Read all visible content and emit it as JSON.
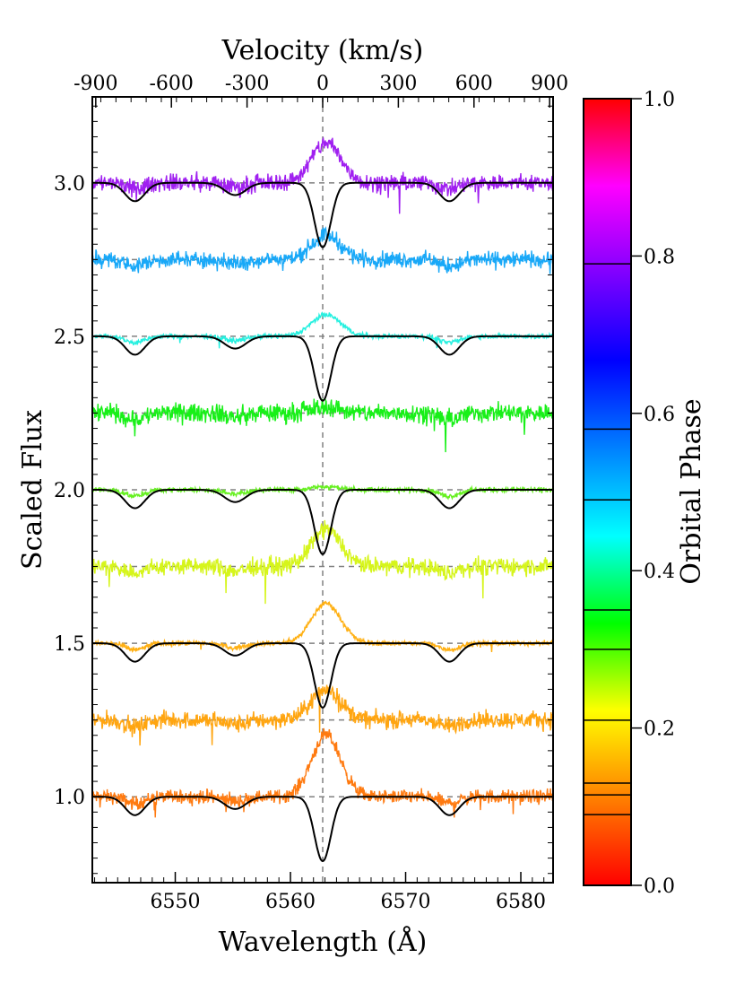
{
  "chart_data": {
    "type": "line",
    "top_axis": {
      "label": "Velocity (km/s)",
      "ticks": [
        -900,
        -600,
        -300,
        0,
        300,
        600,
        900
      ],
      "tick_labels": [
        "-900",
        "-600",
        "-300",
        "0",
        "300",
        "600",
        "900"
      ]
    },
    "xlabel": "Wavelength (Å)",
    "ylabel": "Scaled Flux",
    "xlim": [
      6542.8,
      6582.8
    ],
    "ylim": [
      0.72,
      3.28
    ],
    "x_ticks": [
      6550,
      6560,
      6570,
      6580
    ],
    "x_tick_labels": [
      "6550",
      "6560",
      "6570",
      "6580"
    ],
    "y_ticks": [
      1.0,
      1.5,
      2.0,
      2.5,
      3.0
    ],
    "y_tick_labels": [
      "1.0",
      "1.5",
      "2.0",
      "2.5",
      "3.0"
    ],
    "reference_line_x": 6562.8,
    "dashed_offsets": [
      1.0,
      1.25,
      1.5,
      1.75,
      2.0,
      2.25,
      2.5,
      2.75,
      3.0
    ],
    "model_offsets": [
      1.0,
      1.5,
      2.0,
      2.5,
      3.0
    ],
    "model_features": [
      {
        "center": 6546.5,
        "depth": 0.06,
        "width": 1.2
      },
      {
        "center": 6555.2,
        "depth": 0.04,
        "width": 1.3
      },
      {
        "center": 6562.8,
        "depth": 0.21,
        "width": 1.0
      },
      {
        "center": 6573.8,
        "depth": 0.06,
        "width": 1.2
      }
    ],
    "observed_series": [
      {
        "offset": 1.0,
        "phase": 0.09,
        "color": "#ff7a10",
        "noise": 0.022,
        "emission": 0.2
      },
      {
        "offset": 1.25,
        "phase": 0.115,
        "color": "#ffa510",
        "noise": 0.028,
        "emission": 0.1
      },
      {
        "offset": 1.5,
        "phase": 0.13,
        "color": "#ffb013",
        "noise": 0.008,
        "emission": 0.13
      },
      {
        "offset": 1.75,
        "phase": 0.21,
        "color": "#d6f51b",
        "noise": 0.028,
        "emission": 0.12
      },
      {
        "offset": 2.0,
        "phase": 0.3,
        "color": "#66f020",
        "noise": 0.008,
        "emission": 0.01
      },
      {
        "offset": 2.25,
        "phase": 0.35,
        "color": "#18f018",
        "noise": 0.03,
        "emission": 0.02
      },
      {
        "offset": 2.5,
        "phase": 0.49,
        "color": "#26f0e0",
        "noise": 0.008,
        "emission": 0.07
      },
      {
        "offset": 2.75,
        "phase": 0.58,
        "color": "#18a8f8",
        "noise": 0.026,
        "emission": 0.08
      },
      {
        "offset": 3.0,
        "phase": 0.79,
        "color": "#a020f0",
        "noise": 0.028,
        "emission": 0.13
      }
    ],
    "colorbar": {
      "label": "Orbital Phase",
      "range": [
        0.0,
        1.0
      ],
      "ticks": [
        0.0,
        0.2,
        0.4,
        0.6,
        0.8,
        1.0
      ],
      "tick_labels": [
        "0.0",
        "0.2",
        "0.4",
        "0.6",
        "0.8",
        "1.0"
      ],
      "marked_phases": [
        0.09,
        0.115,
        0.13,
        0.21,
        0.3,
        0.35,
        0.49,
        0.58,
        0.79
      ],
      "colors": [
        "#ff0000",
        "#ff8000",
        "#ffff00",
        "#00ff00",
        "#00ffff",
        "#0080ff",
        "#0000ff",
        "#8000ff",
        "#ff00ff",
        "#ff0000"
      ]
    }
  }
}
